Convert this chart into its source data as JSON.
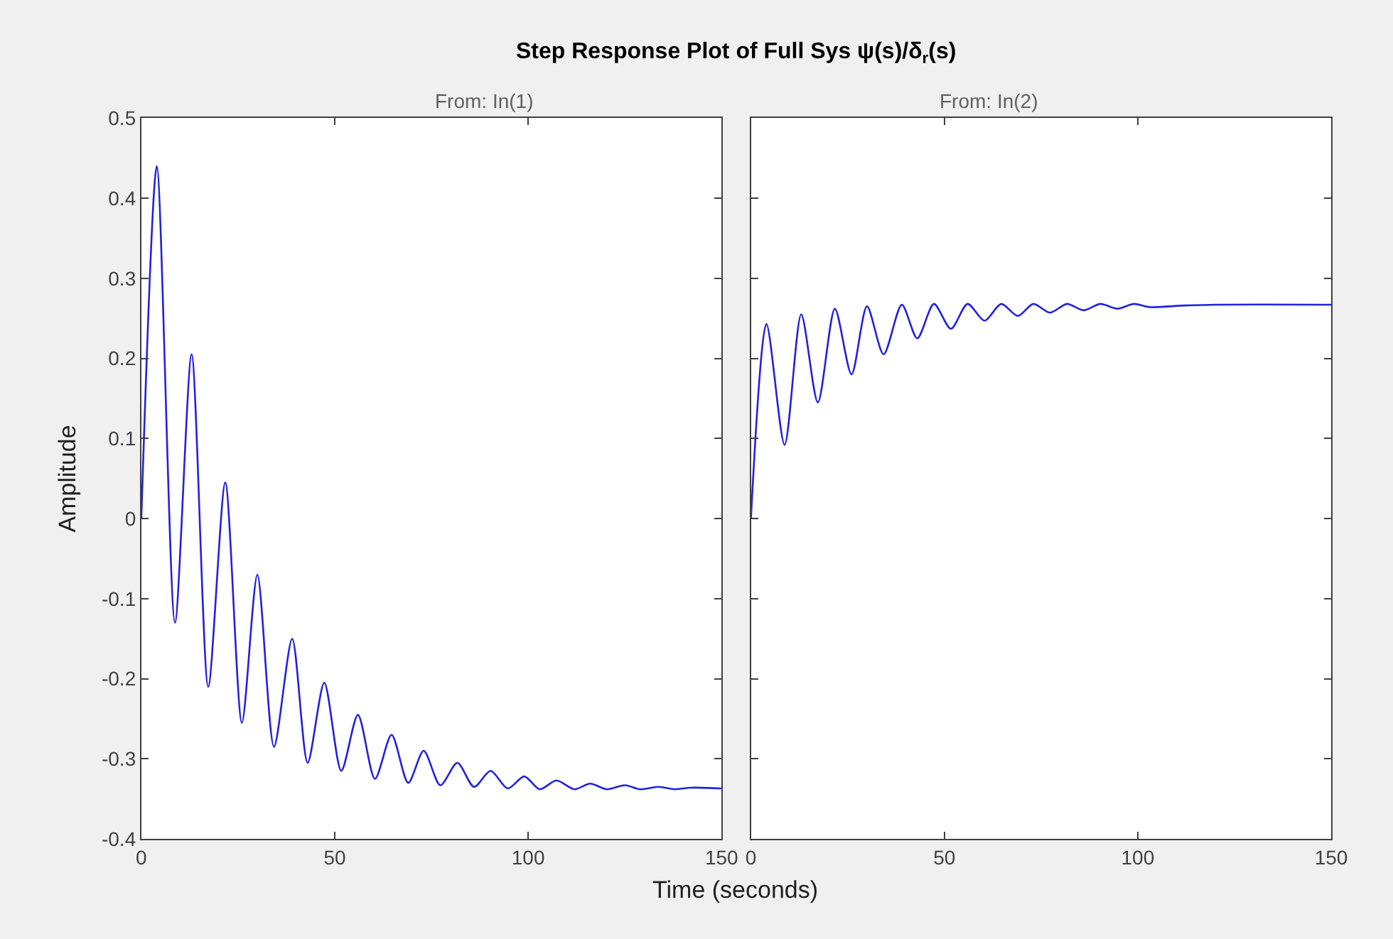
{
  "chart_data": [
    {
      "type": "line",
      "title": "Step Response Plot of Full Sys ψ(s)/δ$_{r}$(s)",
      "subtitle": "From: In(1)",
      "xlabel": "Time (seconds)",
      "ylabel": "Amplitude",
      "x": [
        0,
        4,
        8.7,
        13,
        17.3,
        21.7,
        26,
        30,
        34.3,
        39,
        43,
        47.3,
        51.7,
        56,
        60.4,
        64.7,
        69,
        73,
        77.3,
        81.7,
        86,
        90.3,
        94.7,
        99,
        103,
        107.3,
        112,
        116,
        120.4,
        125,
        129,
        133.6,
        138,
        142,
        150
      ],
      "series": [
        {
          "color": "#2222dd",
          "values": [
            0,
            0.44,
            -0.13,
            0.205,
            -0.21,
            0.045,
            -0.255,
            -0.07,
            -0.285,
            -0.15,
            -0.305,
            -0.205,
            -0.315,
            -0.245,
            -0.325,
            -0.27,
            -0.33,
            -0.29,
            -0.333,
            -0.305,
            -0.335,
            -0.315,
            -0.337,
            -0.322,
            -0.338,
            -0.327,
            -0.338,
            -0.331,
            -0.338,
            -0.333,
            -0.338,
            -0.335,
            -0.338,
            -0.336,
            -0.337
          ]
        }
      ],
      "xlim": [
        0,
        150
      ],
      "xticks": [
        0,
        50,
        100,
        150
      ],
      "ylim": [
        -0.4,
        0.5
      ],
      "yticks": [
        -0.4,
        -0.3,
        -0.2,
        -0.1,
        0,
        0.1,
        0.2,
        0.3,
        0.4,
        0.5
      ],
      "line_style": "solid"
    },
    {
      "type": "line",
      "subtitle": "From: In(2)",
      "x": [
        0,
        4,
        8.7,
        13,
        17.3,
        21.7,
        26,
        30,
        34.3,
        39,
        43,
        47.3,
        51.7,
        56,
        60.4,
        64.7,
        69,
        73,
        77.3,
        81.7,
        86,
        90.3,
        94.7,
        99,
        103,
        112,
        120,
        150
      ],
      "series": [
        {
          "color": "#2222dd",
          "values": [
            0,
            0.243,
            0.092,
            0.255,
            0.145,
            0.262,
            0.18,
            0.265,
            0.205,
            0.267,
            0.225,
            0.268,
            0.237,
            0.268,
            0.247,
            0.268,
            0.253,
            0.268,
            0.257,
            0.268,
            0.26,
            0.268,
            0.262,
            0.268,
            0.264,
            0.266,
            0.267,
            0.267
          ]
        }
      ],
      "xlim": [
        0,
        150
      ],
      "xticks": [
        0,
        50,
        100,
        150
      ],
      "ylim": [
        -0.4,
        0.5
      ],
      "yticks": [
        -0.4,
        -0.3,
        -0.2,
        -0.1,
        0,
        0.1,
        0.2,
        0.3,
        0.4,
        0.5
      ],
      "tick_labels": "x",
      "line_style": "solid"
    }
  ]
}
